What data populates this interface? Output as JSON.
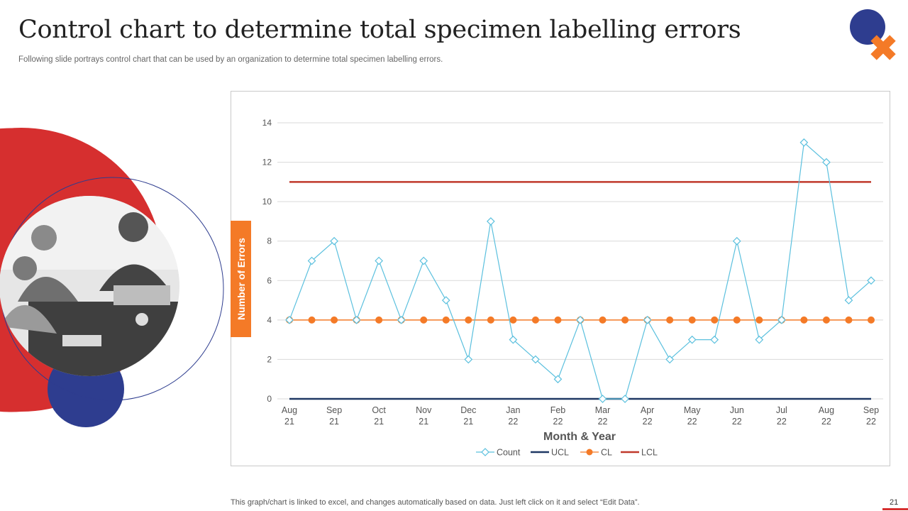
{
  "slide": {
    "title": "Control chart to determine total specimen labelling errors",
    "subtitle": "Following slide portrays control chart that can be used by an organization to determine total specimen labelling errors.",
    "footer_note": "This graph/chart is linked to excel,  and changes automatically based on data. Just left click on it and select “Edit Data”.",
    "page_number": "21"
  },
  "colors": {
    "brand_red": "#d62f2f",
    "brand_blue": "#2e3d8f",
    "brand_orange": "#f47a27",
    "count_line": "#5bc0de",
    "ucl_line": "#1f3864",
    "cl_line": "#f47a27",
    "lcl_line": "#c0392b"
  },
  "chart_data": {
    "type": "line",
    "xlabel": "Month & Year",
    "ylabel": "Number of Errors",
    "ylim": [
      0,
      14
    ],
    "yticks": [
      0,
      2,
      4,
      6,
      8,
      10,
      12,
      14
    ],
    "x_tick_labels": [
      [
        "Aug",
        "21"
      ],
      [
        "Sep",
        "21"
      ],
      [
        "Oct",
        "21"
      ],
      [
        "Nov",
        "21"
      ],
      [
        "Dec",
        "21"
      ],
      [
        "Jan",
        "22"
      ],
      [
        "Feb",
        "22"
      ],
      [
        "Mar",
        "22"
      ],
      [
        "Apr",
        "22"
      ],
      [
        "May",
        "22"
      ],
      [
        "Jun",
        "22"
      ],
      [
        "Jul",
        "22"
      ],
      [
        "Aug",
        "22"
      ],
      [
        "Sep",
        "22"
      ]
    ],
    "x_tick_every": 2,
    "points": 27,
    "grid": true,
    "legend_position": "bottom",
    "series": [
      {
        "name": "Count",
        "values": [
          4,
          7,
          8,
          4,
          7,
          4,
          7,
          5,
          2,
          9,
          3,
          2,
          1,
          4,
          0,
          0,
          4,
          2,
          3,
          3,
          8,
          3,
          4,
          13,
          12,
          5,
          6
        ]
      },
      {
        "name": "UCL",
        "values": [
          0,
          0,
          0,
          0,
          0,
          0,
          0,
          0,
          0,
          0,
          0,
          0,
          0,
          0,
          0,
          0,
          0,
          0,
          0,
          0,
          0,
          0,
          0,
          0,
          0,
          0,
          0
        ]
      },
      {
        "name": "CL",
        "values": [
          4,
          4,
          4,
          4,
          4,
          4,
          4,
          4,
          4,
          4,
          4,
          4,
          4,
          4,
          4,
          4,
          4,
          4,
          4,
          4,
          4,
          4,
          4,
          4,
          4,
          4,
          4
        ]
      },
      {
        "name": "LCL",
        "values": [
          11,
          11,
          11,
          11,
          11,
          11,
          11,
          11,
          11,
          11,
          11,
          11,
          11,
          11,
          11,
          11,
          11,
          11,
          11,
          11,
          11,
          11,
          11,
          11,
          11,
          11,
          11
        ]
      }
    ]
  }
}
